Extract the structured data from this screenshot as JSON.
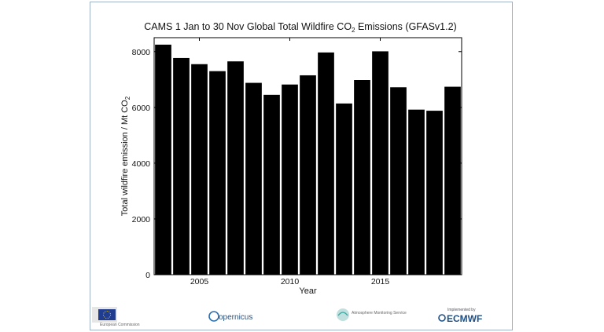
{
  "chart_data": {
    "type": "bar",
    "title": "CAMS 1 Jan to 30 Nov Global Total Wildfire CO",
    "title_subscript": "2",
    "title_suffix": " Emissions (GFASv1.2)",
    "xlabel": "Year",
    "ylabel": "Total wildfire emission / Mt CO",
    "ylabel_subscript": "2",
    "x": [
      2003,
      2004,
      2005,
      2006,
      2007,
      2008,
      2009,
      2010,
      2011,
      2012,
      2013,
      2014,
      2015,
      2016,
      2017,
      2018,
      2019
    ],
    "values": [
      8250,
      7770,
      7550,
      7300,
      7650,
      6880,
      6450,
      6820,
      7150,
      7970,
      6140,
      6980,
      8010,
      6720,
      5920,
      5880,
      6740
    ],
    "xlim": [
      2002.5,
      2019.5
    ],
    "ylim": [
      0,
      8500
    ],
    "xticks": [
      "2005",
      "2010",
      "2015"
    ],
    "yticks": [
      "0",
      "2000",
      "4000",
      "6000",
      "8000"
    ],
    "bar_color": "#000000",
    "grid": false
  },
  "footer": {
    "logos": [
      "eu-flag-logo",
      "copernicus-logo",
      "atmosphere-monitoring-service-logo",
      "ecmwf-logo"
    ],
    "eu_text": "European Commission",
    "copernicus_text": "opernicus",
    "cams_text": "Atmosphere Monitoring Service",
    "ecmwf_text": "ECMWF",
    "ecmwf_prefix": "Implemented by"
  }
}
